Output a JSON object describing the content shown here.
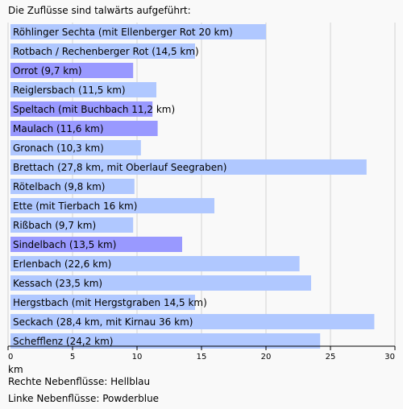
{
  "header": {
    "text": "Die Zuflüsse sind talwärts aufgeführt:"
  },
  "footer": {
    "unit": "km",
    "legend_right": "Rechte Nebenflüsse: Hellblau",
    "legend_left": "Linke Nebenflüsse: Powderblue"
  },
  "colors": {
    "right_tributary": "#b0c8ff",
    "left_tributary": "#9999ff",
    "grid": "#d4d4d4",
    "background": "#f9f9f9"
  },
  "chart_data": {
    "type": "bar",
    "orientation": "horizontal",
    "xlim": [
      0,
      30
    ],
    "xticks": [
      0,
      5,
      10,
      15,
      20,
      25,
      30
    ],
    "xlabel": "km",
    "grid": true,
    "categories": [
      "Röhlinger Sechta (mit Ellenberger Rot 20 km)",
      "Rotbach / Rechenberger Rot (14,5 km)",
      "Orrot (9,7 km)",
      "Reiglersbach (11,5 km)",
      "Speltach (mit Buchbach 11,2 km)",
      "Maulach (11,6 km)",
      "Gronach (10,3 km)",
      "Brettach (27,8 km, mit Oberlauf Seegraben)",
      "Rötelbach (9,8 km)",
      "Ette (mit Tierbach 16 km)",
      "Rißbach (9,7 km)",
      "Sindelbach (13,5 km)",
      "Erlenbach (22,6 km)",
      "Kessach (23,5 km)",
      "Hergstbach (mit Hergstgraben 14,5 km)",
      "Seckach (28,4 km, mit Kirnau 36 km)",
      "Schefflenz (24,2 km)"
    ],
    "values": [
      20,
      14.5,
      9.7,
      11.5,
      11.2,
      11.6,
      10.3,
      27.8,
      9.8,
      16,
      9.7,
      13.5,
      22.6,
      23.5,
      14.5,
      28.4,
      24.2
    ],
    "side": [
      "right",
      "right",
      "left",
      "right",
      "left",
      "left",
      "right",
      "right",
      "right",
      "right",
      "right",
      "left",
      "right",
      "right",
      "right",
      "right",
      "right"
    ]
  }
}
